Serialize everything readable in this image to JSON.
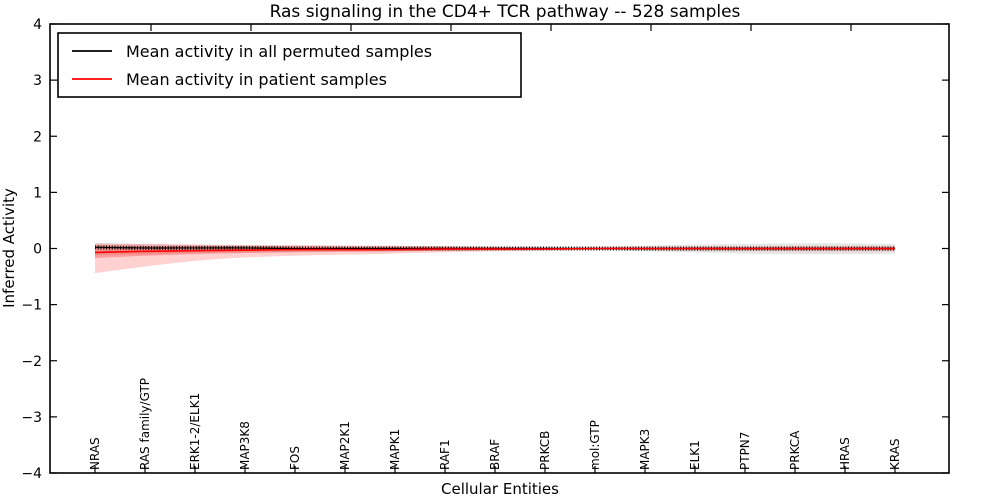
{
  "title": "Ras signaling in the CD4+ TCR pathway -- 528 samples",
  "chart_data": {
    "type": "line",
    "title": "Ras signaling in the CD4+ TCR pathway -- 528 samples",
    "xlabel": "Cellular Entities",
    "ylabel": "Inferred Activity",
    "ylim": [
      -4,
      4
    ],
    "yticks": [
      -4,
      -3,
      -2,
      -1,
      0,
      1,
      2,
      3,
      4
    ],
    "grid": false,
    "legend_position": "upper left",
    "categories": [
      "NRAS",
      "RAS family/GTP",
      "ERK1-2/ELK1",
      "MAP3K8",
      "FOS",
      "MAP2K1",
      "MAPK1",
      "RAF1",
      "BRAF",
      "PRKCB",
      "mol:GTP",
      "MAPK3",
      "ELK1",
      "PTPN7",
      "PRKCA",
      "HRAS",
      "KRAS"
    ],
    "series": [
      {
        "name": "Mean activity in all permuted samples",
        "color": "#000000",
        "values": [
          0.02,
          0.01,
          0.01,
          0.01,
          0.0,
          0.0,
          0.0,
          0.0,
          0.0,
          0.0,
          0.0,
          0.0,
          0.0,
          0.0,
          0.0,
          0.0,
          0.0
        ]
      },
      {
        "name": "Mean activity in patient samples",
        "color": "#ff0000",
        "values": [
          -0.07,
          -0.05,
          -0.04,
          -0.03,
          -0.02,
          -0.02,
          -0.02,
          -0.01,
          -0.01,
          -0.01,
          0.0,
          0.0,
          0.0,
          0.0,
          0.0,
          0.0,
          0.0
        ]
      }
    ],
    "bands": [
      {
        "name": "permuted-samples-range",
        "color": "rgba(130,130,130,0.22)",
        "upper": [
          0.1,
          0.08,
          0.07,
          0.06,
          0.05,
          0.05,
          0.04,
          0.04,
          0.03,
          0.03,
          0.02,
          0.05,
          0.07,
          0.08,
          0.09,
          0.09,
          0.08
        ],
        "lower": [
          -0.12,
          -0.1,
          -0.08,
          -0.07,
          -0.06,
          -0.05,
          -0.05,
          -0.04,
          -0.03,
          -0.03,
          -0.02,
          -0.05,
          -0.07,
          -0.09,
          -0.1,
          -0.1,
          -0.09
        ]
      },
      {
        "name": "patient-samples-range-outer",
        "color": "rgba(255,0,0,0.18)",
        "upper": [
          0.09,
          0.08,
          0.07,
          0.06,
          0.06,
          0.05,
          0.05,
          0.04,
          0.03,
          0.02,
          0.01,
          0.02,
          0.03,
          0.03,
          0.04,
          0.04,
          0.04
        ],
        "lower": [
          -0.44,
          -0.32,
          -0.22,
          -0.16,
          -0.13,
          -0.11,
          -0.09,
          -0.07,
          -0.05,
          -0.03,
          -0.02,
          -0.03,
          -0.04,
          -0.04,
          -0.05,
          -0.05,
          -0.05
        ]
      },
      {
        "name": "patient-samples-range-inner",
        "color": "rgba(255,0,0,0.25)",
        "upper": [
          0.06,
          0.05,
          0.05,
          0.04,
          0.04,
          0.03,
          0.03,
          0.03,
          0.02,
          0.01,
          0.01,
          0.01,
          0.02,
          0.02,
          0.02,
          0.02,
          0.02
        ],
        "lower": [
          -0.17,
          -0.13,
          -0.1,
          -0.08,
          -0.07,
          -0.06,
          -0.05,
          -0.04,
          -0.03,
          -0.02,
          -0.01,
          -0.02,
          -0.02,
          -0.03,
          -0.03,
          -0.03,
          -0.03
        ]
      }
    ]
  }
}
